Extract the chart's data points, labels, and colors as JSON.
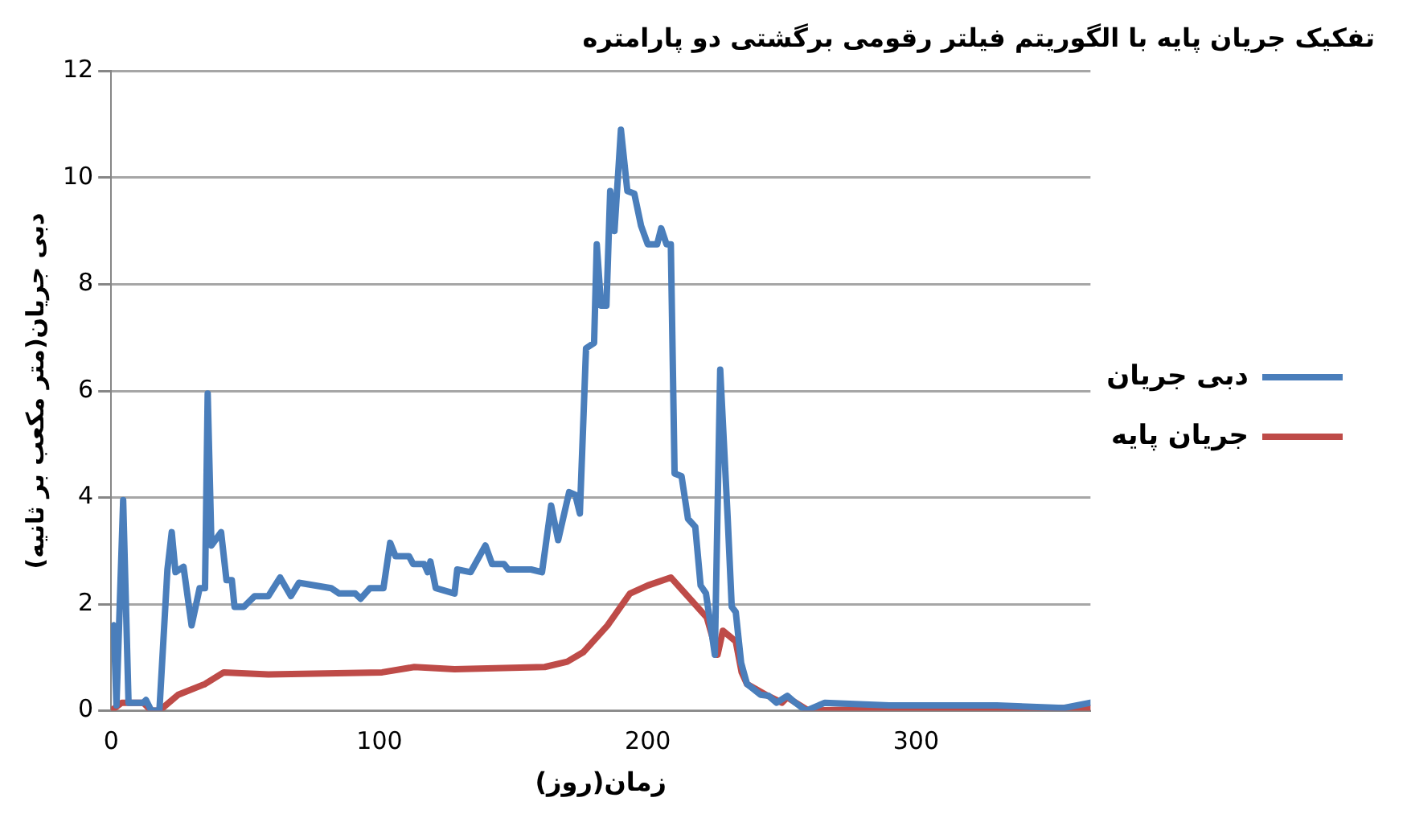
{
  "chart_data": {
    "type": "line",
    "title": "تفکیک جریان پایه با الگوریتم فیلتر رقومی برگشتی دو پارامتره",
    "xlabel": "زمان(روز)",
    "ylabel": "دبی جریان(متر مکعب بر ثانیه)",
    "xlim": [
      0,
      365
    ],
    "xticks": [
      0,
      100,
      200,
      300
    ],
    "ylim": [
      0,
      12
    ],
    "yticks": [
      0,
      2,
      4,
      6,
      8,
      10,
      12
    ],
    "grid": "y",
    "legend": "right",
    "marker": "none",
    "line_style": "solid",
    "series": [
      {
        "name": "دبی جریان",
        "color": "#4a7ebb",
        "x": [
          0,
          1,
          2,
          4.5,
          6.5,
          12,
          13,
          15,
          18,
          21,
          22.6,
          24,
          27,
          30,
          33,
          35,
          36,
          37.4,
          41,
          43,
          45,
          46,
          49.5,
          53.5,
          58.6,
          63,
          67,
          70,
          82,
          85,
          91,
          93,
          96.5,
          101.5,
          104,
          106,
          111,
          112.6,
          116.7,
          118,
          119,
          121,
          128,
          129,
          134,
          139.5,
          142,
          146.5,
          148,
          156.5,
          160.6,
          164,
          166.6,
          170.7,
          173,
          174.7,
          177,
          180,
          181,
          182.6,
          184.6,
          186,
          187.6,
          190,
          192.4,
          195,
          197.5,
          200,
          203.5,
          205,
          207,
          208.6,
          210,
          212.6,
          215,
          217.7,
          219.7,
          221.7,
          225,
          227,
          229.8,
          231.3,
          232.8,
          234.8,
          237,
          242,
          245,
          248,
          252,
          255,
          259,
          266,
          290,
          330,
          355,
          365
        ],
        "values": [
          1.55,
          1.6,
          0.1,
          3.95,
          0.15,
          0.15,
          0.2,
          0,
          0,
          2.65,
          3.35,
          2.6,
          2.7,
          1.6,
          2.3,
          2.3,
          5.95,
          3.1,
          3.35,
          2.45,
          2.45,
          1.95,
          1.95,
          2.15,
          2.15,
          2.5,
          2.15,
          2.4,
          2.3,
          2.2,
          2.2,
          2.1,
          2.3,
          2.3,
          3.15,
          2.9,
          2.9,
          2.75,
          2.75,
          2.6,
          2.8,
          2.3,
          2.2,
          2.65,
          2.6,
          3.1,
          2.75,
          2.75,
          2.65,
          2.65,
          2.6,
          3.85,
          3.2,
          4.1,
          4.05,
          3.7,
          6.8,
          6.9,
          8.75,
          7.6,
          7.6,
          9.75,
          9,
          10.9,
          9.75,
          9.7,
          9.1,
          8.75,
          8.75,
          9.05,
          8.75,
          8.75,
          4.45,
          4.4,
          3.6,
          3.45,
          2.35,
          2.2,
          1.05,
          6.4,
          3.6,
          1.95,
          1.85,
          0.9,
          0.5,
          0.3,
          0.28,
          0.15,
          0.28,
          0.15,
          0,
          0.15,
          0.1,
          0.1,
          0.05,
          0.15
        ]
      },
      {
        "name": "جریان پایه",
        "color": "#be4b48",
        "x": [
          0,
          4,
          12,
          15,
          18,
          25,
          35,
          42,
          58.6,
          101,
          113,
          128,
          161.6,
          170,
          176,
          185,
          193.4,
          200,
          208.6,
          222,
          226,
          228,
          232.8,
          235,
          237,
          244,
          250,
          252,
          260,
          300,
          365
        ],
        "values": [
          0,
          0.15,
          0.15,
          0,
          0,
          0.3,
          0.5,
          0.72,
          0.68,
          0.72,
          0.82,
          0.78,
          0.82,
          0.92,
          1.1,
          1.6,
          2.2,
          2.35,
          2.5,
          1.75,
          1.05,
          1.5,
          1.3,
          0.72,
          0.5,
          0.3,
          0.15,
          0.25,
          0,
          0.05,
          0.05
        ]
      }
    ]
  }
}
